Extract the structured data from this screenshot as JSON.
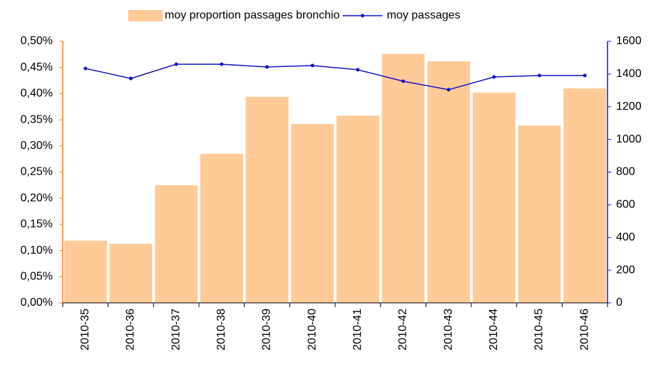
{
  "chart_data": {
    "type": "bar_line",
    "categories": [
      "2010-35",
      "2010-36",
      "2010-37",
      "2010-38",
      "2010-39",
      "2010-40",
      "2010-41",
      "2010-42",
      "2010-43",
      "2010-44",
      "2010-45",
      "2010-46"
    ],
    "series": [
      {
        "name": "moy proportion passages bronchio",
        "type": "bar",
        "axis": "y",
        "color": "#fdca98",
        "values": [
          0.119,
          0.113,
          0.225,
          0.285,
          0.394,
          0.342,
          0.358,
          0.476,
          0.462,
          0.402,
          0.339,
          0.41
        ]
      },
      {
        "name": "moy passages",
        "type": "line",
        "axis": "y2",
        "color": "#1414c8",
        "values": [
          1434,
          1373,
          1460,
          1460,
          1443,
          1452,
          1426,
          1356,
          1304,
          1382,
          1391,
          1391
        ]
      }
    ],
    "ylim": [
      0,
      0.5
    ],
    "yticks": [
      {
        "value": 0,
        "label": "0,00%"
      },
      {
        "value": 0.05,
        "label": "0,05%"
      },
      {
        "value": 0.1,
        "label": "0,10%"
      },
      {
        "value": 0.15,
        "label": "0,15%"
      },
      {
        "value": 0.2,
        "label": "0,20%"
      },
      {
        "value": 0.25,
        "label": "0,25%"
      },
      {
        "value": 0.3,
        "label": "0,30%"
      },
      {
        "value": 0.35,
        "label": "0,35%"
      },
      {
        "value": 0.4,
        "label": "0,40%"
      },
      {
        "value": 0.45,
        "label": "0,45%"
      },
      {
        "value": 0.5,
        "label": "0,50%"
      }
    ],
    "y2lim": [
      0,
      1600
    ],
    "y2ticks": [
      0,
      200,
      400,
      600,
      800,
      1000,
      1200,
      1400,
      1600
    ],
    "y_axis_color": "#ff7f27",
    "y2_axis_color": "#1414c8",
    "legend": "top"
  }
}
